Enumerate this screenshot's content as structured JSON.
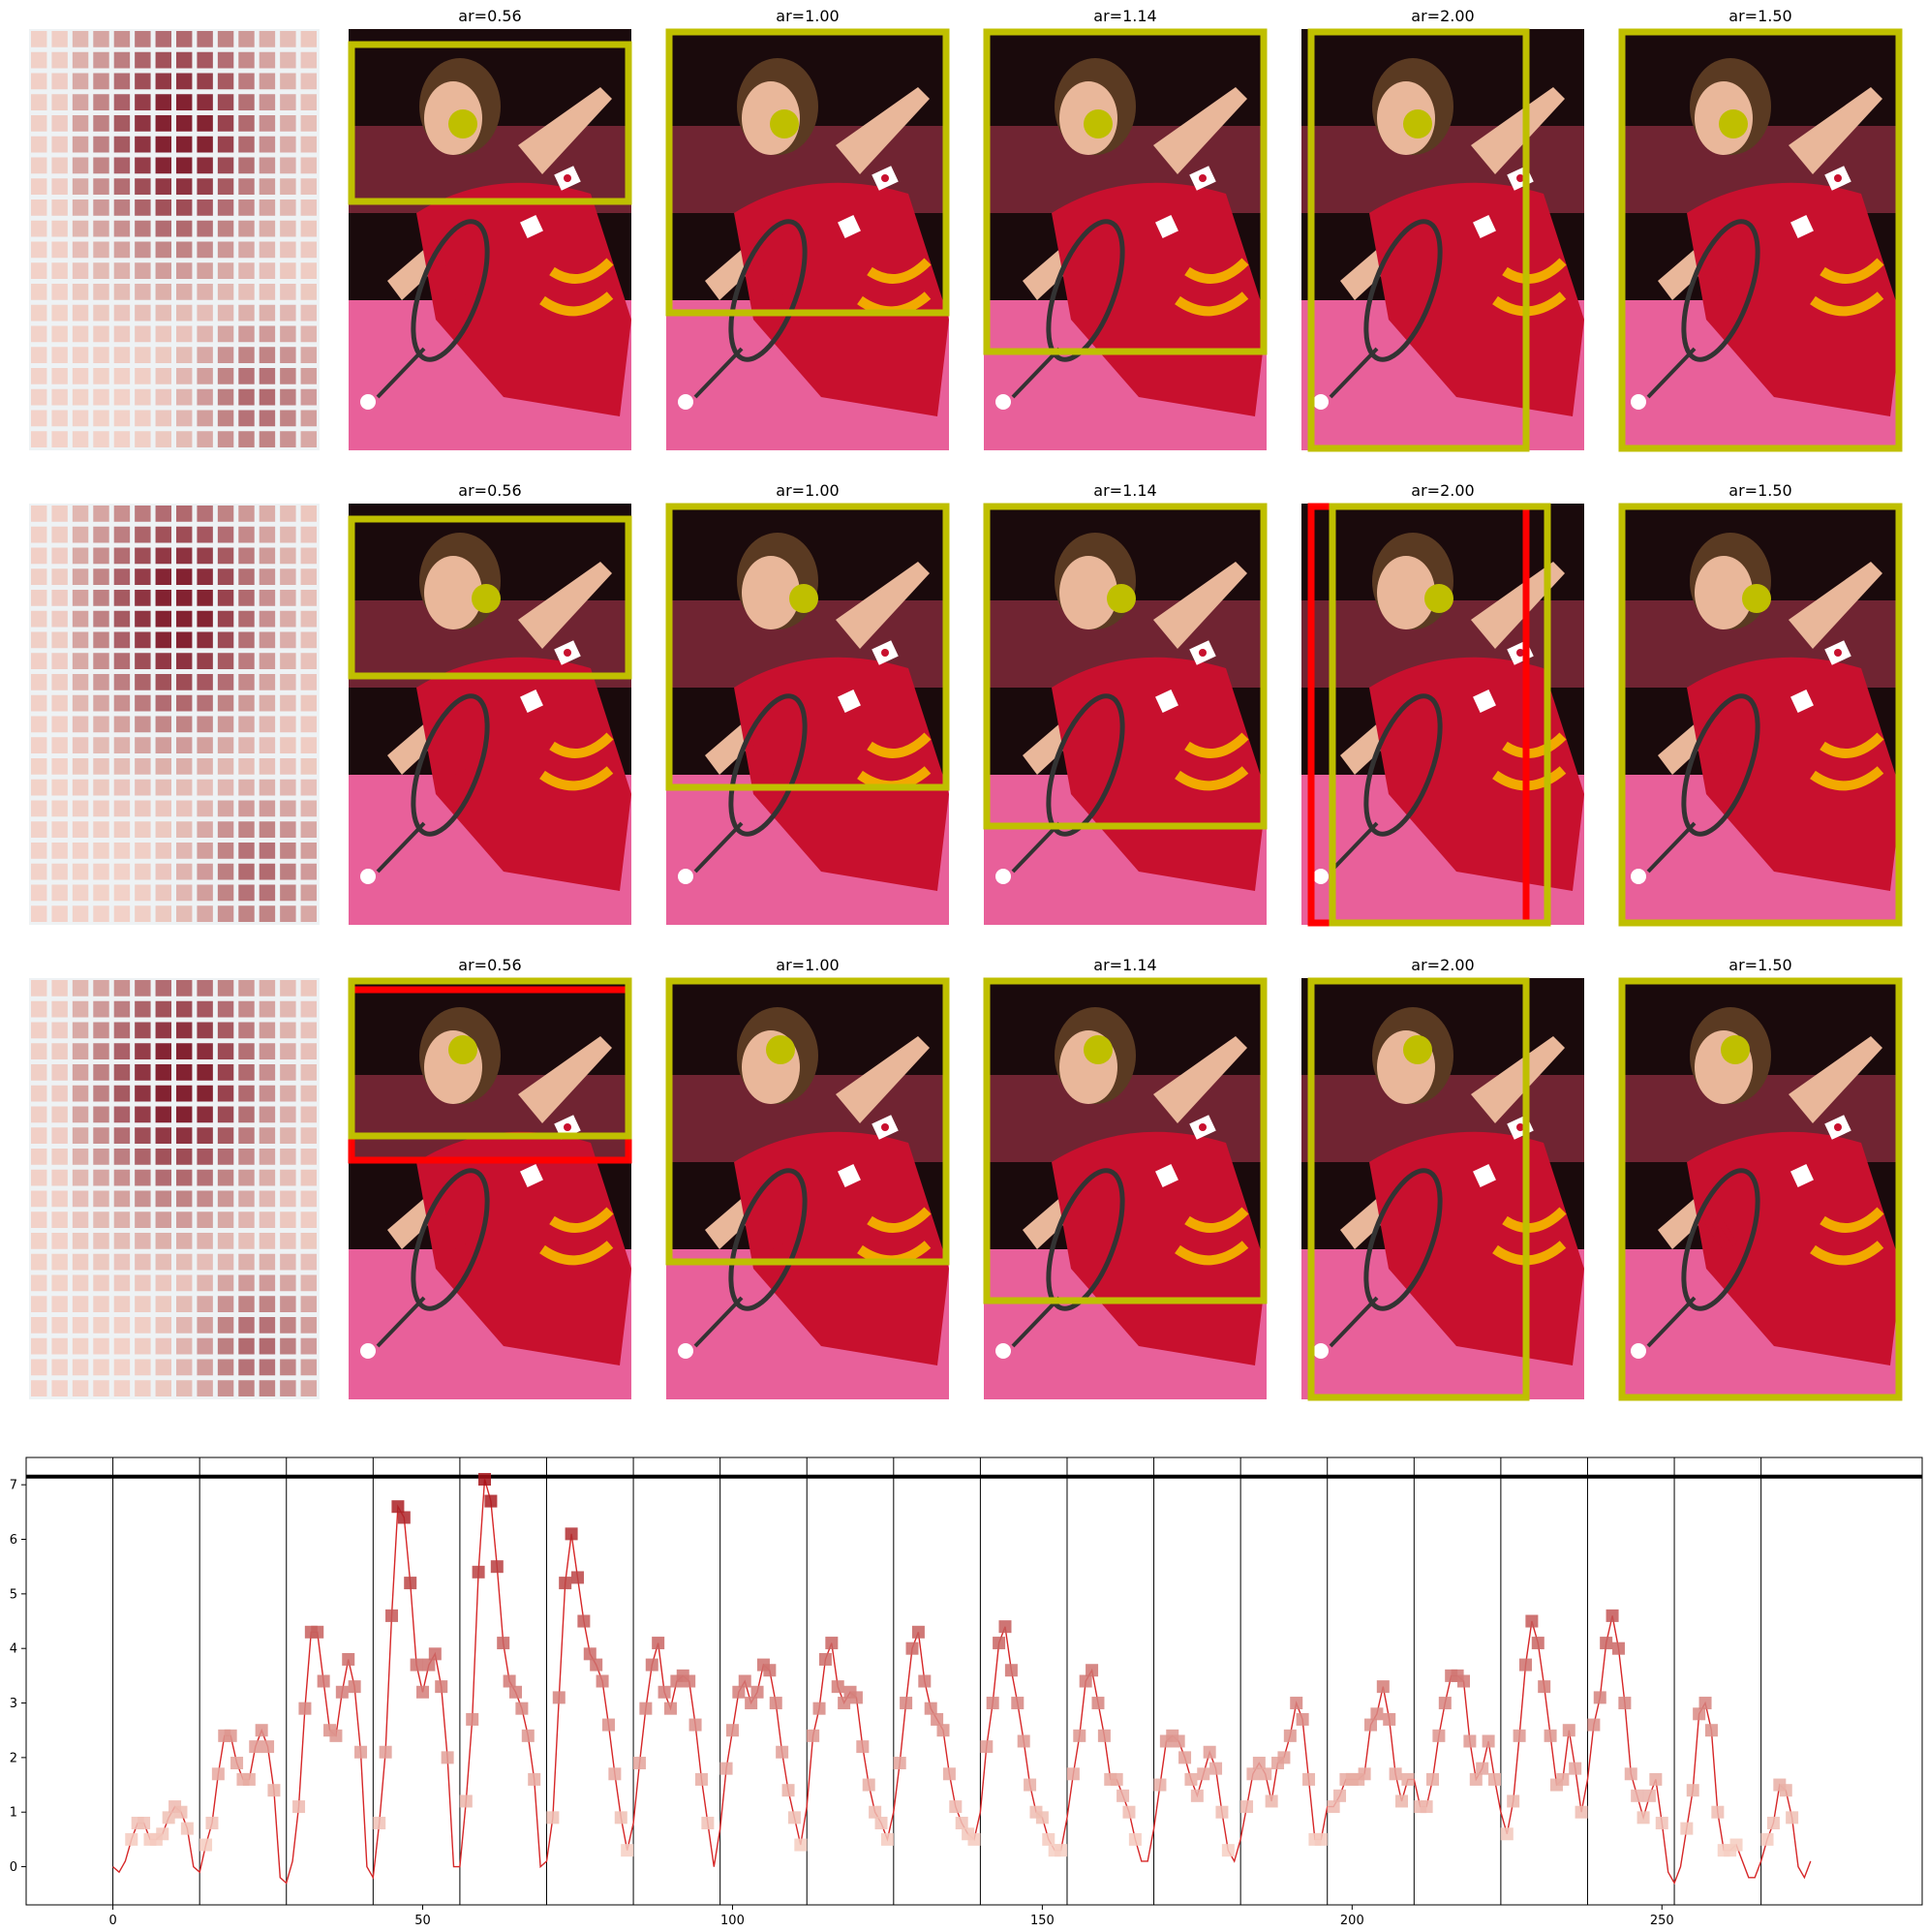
{
  "panel_titles": [
    "ar=0.56",
    "ar=1.00",
    "ar=1.14",
    "ar=2.00",
    "ar=1.50"
  ],
  "colors": {
    "selected_crop": "#bfbf00",
    "rejected_crop": "#ff0000",
    "heatmap_low": "#fde0d2",
    "heatmap_high": "#7a1020",
    "line": "#d62728",
    "threshold": "#000000",
    "photo_bg_dark": "#1a0a0c",
    "photo_bg_pink": "#e8609a",
    "jersey": "#c8102e",
    "skin": "#e9b79a",
    "hair": "#5a3a22"
  },
  "rows": [
    {
      "name": "row-1"
    },
    {
      "name": "row-2"
    },
    {
      "name": "row-3"
    }
  ],
  "chart_data": {
    "type": "line",
    "xlabel": "",
    "ylabel": "",
    "xlim": [
      -14,
      292
    ],
    "ylim": [
      -0.7,
      7.5
    ],
    "xticks": [
      0,
      50,
      100,
      150,
      200,
      250
    ],
    "yticks": [
      0,
      1,
      2,
      3,
      4,
      5,
      6,
      7
    ],
    "threshold": 7.15,
    "vlines": [
      0,
      14,
      28,
      42,
      56,
      70,
      84,
      98,
      112,
      126,
      140,
      154,
      168,
      182,
      196,
      210,
      224,
      238,
      252,
      266
    ],
    "series": [
      {
        "values": [
          0.0,
          -0.1,
          0.1,
          0.5,
          0.8,
          0.8,
          0.5,
          0.5,
          0.6,
          0.9,
          1.1,
          1.0,
          0.7,
          0.0,
          -0.1,
          0.4,
          0.8,
          1.7,
          2.4,
          2.4,
          1.9,
          1.6,
          1.6,
          2.2,
          2.5,
          2.2,
          1.4,
          -0.2,
          -0.3,
          0.1,
          1.1,
          2.9,
          4.3,
          4.3,
          3.4,
          2.5,
          2.4,
          3.2,
          3.8,
          3.3,
          2.1,
          0.0,
          -0.2,
          0.8,
          2.1,
          4.6,
          6.6,
          6.4,
          5.2,
          3.7,
          3.2,
          3.7,
          3.9,
          3.3,
          2.0,
          0.0,
          0.0,
          1.2,
          2.7,
          5.4,
          7.1,
          6.7,
          5.5,
          4.1,
          3.4,
          3.2,
          2.9,
          2.4,
          1.6,
          0.0,
          0.1,
          0.9,
          3.1,
          5.2,
          6.1,
          5.3,
          4.5,
          3.9,
          3.7,
          3.4,
          2.6,
          1.7,
          0.9,
          0.3,
          0.8,
          1.9,
          2.9,
          3.7,
          4.1,
          3.2,
          2.9,
          3.4,
          3.5,
          3.4,
          2.6,
          1.6,
          0.8,
          0.0,
          0.7,
          1.8,
          2.5,
          3.2,
          3.4,
          3.0,
          3.2,
          3.7,
          3.6,
          3.0,
          2.1,
          1.4,
          0.9,
          0.4,
          1.1,
          2.4,
          2.9,
          3.8,
          4.1,
          3.3,
          3.0,
          3.2,
          3.1,
          2.2,
          1.5,
          1.0,
          0.8,
          0.5,
          1.0,
          1.9,
          3.0,
          4.0,
          4.3,
          3.4,
          2.9,
          2.7,
          2.5,
          1.7,
          1.1,
          0.8,
          0.6,
          0.5,
          1.0,
          2.2,
          3.0,
          4.1,
          4.4,
          3.6,
          3.0,
          2.3,
          1.5,
          1.0,
          0.9,
          0.5,
          0.3,
          0.3,
          0.9,
          1.7,
          2.4,
          3.4,
          3.6,
          3.0,
          2.4,
          1.6,
          1.6,
          1.3,
          1.0,
          0.5,
          0.1,
          0.1,
          0.7,
          1.5,
          2.3,
          2.4,
          2.3,
          2.0,
          1.6,
          1.3,
          1.7,
          2.1,
          1.8,
          1.0,
          0.3,
          0.1,
          0.5,
          1.1,
          1.7,
          1.9,
          1.7,
          1.2,
          1.9,
          2.0,
          2.4,
          3.0,
          2.7,
          1.6,
          0.5,
          0.5,
          1.1,
          1.1,
          1.3,
          1.6,
          1.6,
          1.6,
          1.7,
          2.6,
          2.8,
          3.3,
          2.7,
          1.7,
          1.2,
          1.6,
          1.6,
          1.1,
          1.1,
          1.6,
          2.4,
          3.0,
          3.5,
          3.5,
          3.4,
          2.3,
          1.6,
          1.8,
          2.3,
          1.6,
          1.0,
          0.6,
          1.2,
          2.4,
          3.7,
          4.5,
          4.1,
          3.3,
          2.4,
          1.5,
          1.6,
          2.5,
          1.8,
          1.0,
          1.6,
          2.6,
          3.1,
          4.1,
          4.6,
          4.0,
          3.0,
          1.7,
          1.3,
          0.9,
          1.3,
          1.6,
          0.8,
          -0.1,
          -0.3,
          0.0,
          0.7,
          1.4,
          2.8,
          3.0,
          2.5,
          1.0,
          0.3,
          0.3,
          0.4,
          0.1,
          -0.2,
          -0.2,
          0.1,
          0.5,
          0.8,
          1.5,
          1.4,
          0.9,
          0.0,
          -0.2,
          0.1
        ]
      }
    ]
  }
}
